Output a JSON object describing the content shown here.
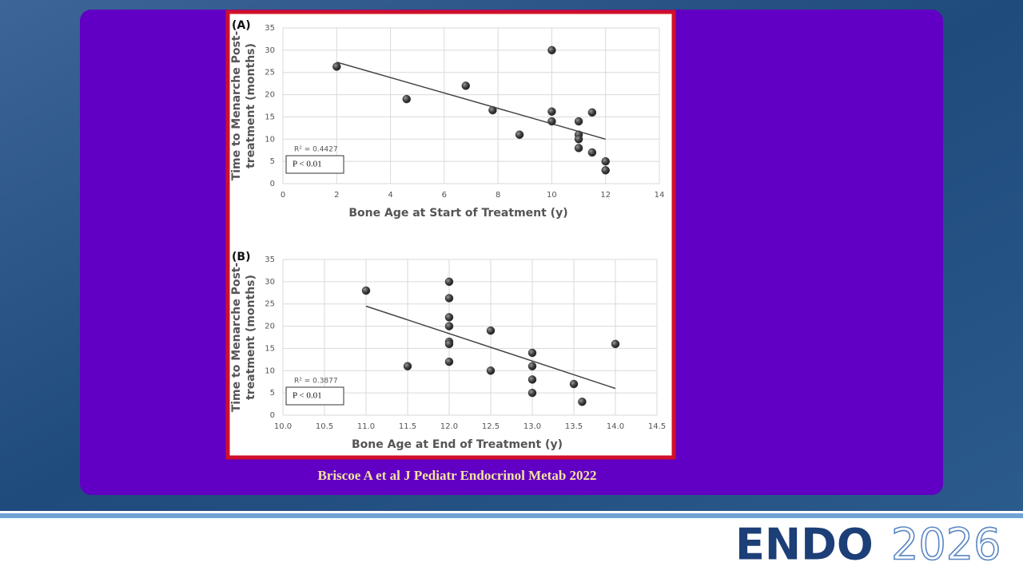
{
  "chart_data": [
    {
      "type": "scatter",
      "panel": "(A)",
      "xlabel": "Bone Age at Start of Treatment (y)",
      "ylabel": [
        "Time to Menarche Post-",
        "treatment (months)"
      ],
      "xlim": [
        0,
        14
      ],
      "xticks": [
        0,
        2,
        4,
        6,
        8,
        10,
        12,
        14
      ],
      "ylim": [
        0,
        35
      ],
      "yticks": [
        0,
        5,
        10,
        15,
        20,
        25,
        30,
        35
      ],
      "grid": true,
      "color": "#3a3a3a",
      "x": [
        2,
        4.6,
        6.8,
        7.8,
        8.8,
        10,
        10,
        10,
        11,
        11,
        11,
        11,
        11.5,
        11.5,
        12,
        12
      ],
      "values": [
        26.3,
        19,
        22,
        16.5,
        11,
        30,
        16.2,
        14,
        14,
        11,
        10,
        8,
        16,
        7,
        5,
        3
      ],
      "trendline": {
        "x": [
          2,
          12
        ],
        "y": [
          27.3,
          10
        ]
      },
      "annotations": [
        "R² = 0.4427",
        "P < 0.01"
      ]
    },
    {
      "type": "scatter",
      "panel": "(B)",
      "xlabel": "Bone Age at End of Treatment (y)",
      "ylabel": [
        "Time to Menarche Post-",
        "treatment (months)"
      ],
      "xlim": [
        10,
        14.5
      ],
      "xticks": [
        {
          "value": 10,
          "label": "10.0"
        },
        10.5,
        {
          "value": 11,
          "label": "11.0"
        },
        11.5,
        {
          "value": 12,
          "label": "12.0"
        },
        12.5,
        {
          "value": 13,
          "label": "13.0"
        },
        13.5,
        {
          "value": 14,
          "label": "14.0"
        },
        14.5
      ],
      "ylim": [
        0,
        35
      ],
      "yticks": [
        0,
        5,
        10,
        15,
        20,
        25,
        30,
        35
      ],
      "grid": true,
      "color": "#3a3a3a",
      "x": [
        11,
        11.5,
        12,
        12,
        12,
        12,
        12,
        12,
        12,
        12.5,
        12.5,
        13,
        13,
        13,
        13,
        13.5,
        13.6,
        14
      ],
      "values": [
        28,
        11,
        30,
        26.3,
        22,
        20,
        16.5,
        16,
        12,
        19,
        10,
        14,
        11,
        8,
        5,
        7,
        3,
        16
      ],
      "trendline": {
        "x": [
          11,
          14
        ],
        "y": [
          24.5,
          6
        ]
      },
      "annotations": [
        "R² = 0.3877",
        "P < 0.01"
      ]
    }
  ],
  "citation": "Briscoe A et al J Pediatr Endocrinol Metab 2022",
  "logo": {
    "name": "ENDO",
    "year": "2026"
  }
}
